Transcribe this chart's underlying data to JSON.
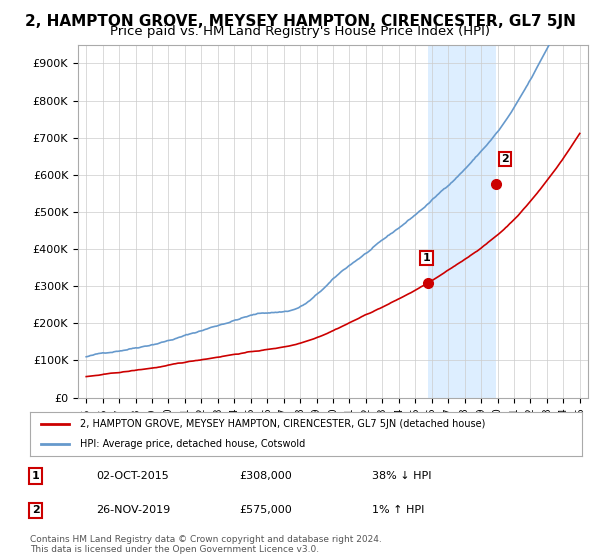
{
  "title": "2, HAMPTON GROVE, MEYSEY HAMPTON, CIRENCESTER, GL7 5JN",
  "subtitle": "Price paid vs. HM Land Registry's House Price Index (HPI)",
  "ylabel": "",
  "ylim": [
    0,
    950000
  ],
  "yticks": [
    0,
    100000,
    200000,
    300000,
    400000,
    500000,
    600000,
    700000,
    800000,
    900000
  ],
  "ytick_labels": [
    "£0",
    "£100K",
    "£200K",
    "£300K",
    "£400K",
    "£500K",
    "£600K",
    "£700K",
    "£800K",
    "£900K"
  ],
  "hpi_color": "#6699cc",
  "property_color": "#cc0000",
  "highlight_bg": "#ddeeff",
  "sale1_date_idx": 20.75,
  "sale1_value": 308000,
  "sale1_label": "1",
  "sale2_date_idx": 24.9,
  "sale2_value": 575000,
  "sale2_label": "2",
  "legend_property": "2, HAMPTON GROVE, MEYSEY HAMPTON, CIRENCESTER, GL7 5JN (detached house)",
  "legend_hpi": "HPI: Average price, detached house, Cotswold",
  "annotation1_date": "02-OCT-2015",
  "annotation1_price": "£308,000",
  "annotation1_hpi": "38% ↓ HPI",
  "annotation2_date": "26-NOV-2019",
  "annotation2_price": "£575,000",
  "annotation2_hpi": "1% ↑ HPI",
  "footnote": "Contains HM Land Registry data © Crown copyright and database right 2024.\nThis data is licensed under the Open Government Licence v3.0.",
  "bg_color": "#ffffff",
  "grid_color": "#cccccc",
  "title_fontsize": 11,
  "subtitle_fontsize": 9.5
}
